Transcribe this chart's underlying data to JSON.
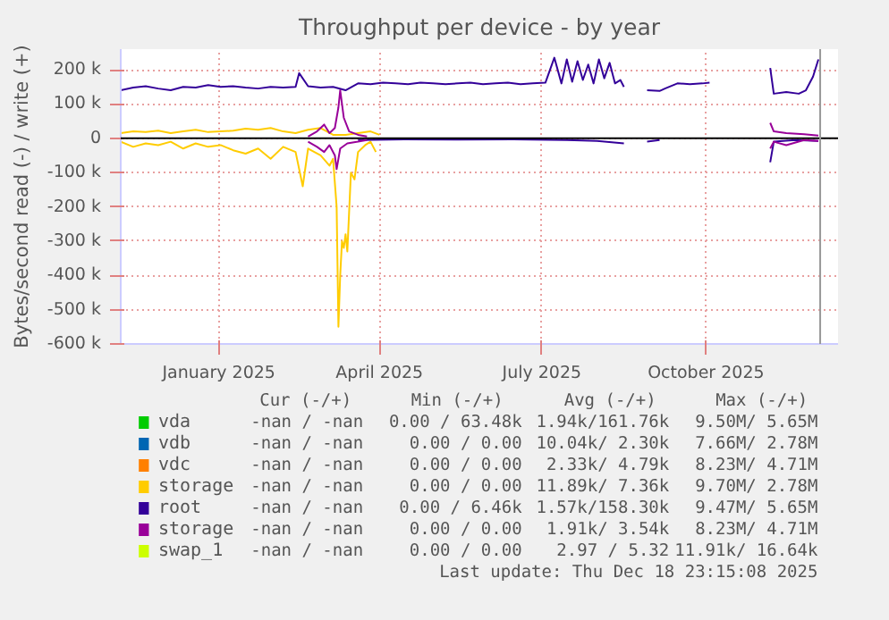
{
  "chart_data": {
    "type": "line",
    "title": "Throughput per device - by year",
    "ylabel": "Bytes/second read (-) / write (+)",
    "xlim": [
      "2024-11-07",
      "2025-12-14"
    ],
    "ylim": [
      -600,
      260
    ],
    "xticks": [
      {
        "value": "2025-01-01",
        "label": "January 2025"
      },
      {
        "value": "2025-04-01",
        "label": "April 2025"
      },
      {
        "value": "2025-07-01",
        "label": "July 2025"
      },
      {
        "value": "2025-10-01",
        "label": "October 2025"
      }
    ],
    "yticks": [
      {
        "value": -600,
        "label": "-600 k"
      },
      {
        "value": -500,
        "label": "-500 k"
      },
      {
        "value": -400,
        "label": "-400 k"
      },
      {
        "value": -300,
        "label": "-300 k"
      },
      {
        "value": -200,
        "label": "-200 k"
      },
      {
        "value": -100,
        "label": "-100 k"
      },
      0,
      {
        "value": 100,
        "label": "100 k"
      },
      {
        "value": 200,
        "label": "200 k"
      }
    ],
    "grid": true,
    "legend": "bottom",
    "ref_lines": [
      {
        "axis": "y",
        "value": 0,
        "color": "#000000"
      },
      {
        "axis": "x",
        "value": "2025-12-04",
        "color": "#999999"
      }
    ],
    "annotations": [
      "Cur (-/+)",
      "Min (-/+)",
      "Avg (-/+)",
      "Max (-/+)",
      "-nan / -nan",
      "0.00 / 63.48k",
      "1.94k/161.76k",
      "9.50M/ 5.65M",
      "-nan / -nan",
      "0.00 / 0.00",
      "10.04k/ 2.30k",
      "7.66M/ 2.78M",
      "-nan / -nan",
      "0.00 / 0.00",
      "2.33k/ 4.79k",
      "8.23M/ 4.71M",
      "-nan / -nan",
      "0.00 / 0.00",
      "11.89k/ 7.36k",
      "9.70M/ 2.78M",
      "-nan / -nan",
      "0.00 / 6.46k",
      "1.57k/158.30k",
      "9.47M/ 5.65M",
      "-nan / -nan",
      "0.00 / 0.00",
      "1.91k/ 3.54k",
      "8.23M/ 4.71M",
      "-nan / -nan",
      "0.00 / 0.00",
      "2.97 / 5.32",
      "11.91k/ 16.64k",
      "Last update: Thu Dec 18 23:15:08 2025"
    ],
    "series": [
      {
        "name": "vda",
        "color": "#00cc00"
      },
      {
        "name": "vdb",
        "color": "#0066b3"
      },
      {
        "name": "vdc",
        "color": "#ff8000"
      },
      {
        "name": "storage",
        "color": "#ffcc00",
        "x": [
          "2024-11-07",
          "2024-11-14",
          "2024-11-21",
          "2024-11-28",
          "2024-12-05",
          "2024-12-12",
          "2024-12-19",
          "2024-12-26",
          "2025-01-02",
          "2025-01-09",
          "2025-01-16",
          "2025-01-23",
          "2025-01-30",
          "2025-02-06",
          "2025-02-13",
          "2025-02-20",
          "2025-02-27",
          "2025-03-06",
          "2025-03-13",
          "2025-03-20",
          "2025-03-27",
          "2025-04-01"
        ],
        "values": [
          15,
          20,
          18,
          22,
          15,
          20,
          25,
          18,
          20,
          22,
          28,
          25,
          30,
          20,
          15,
          25,
          30,
          10,
          10,
          15,
          20,
          10
        ]
      },
      {
        "name": "root",
        "color": "#330099",
        "x": [
          "2024-11-07",
          "2024-11-14",
          "2024-11-21",
          "2024-11-28",
          "2024-12-05",
          "2024-12-12",
          "2024-12-19",
          "2024-12-26",
          "2025-01-02",
          "2025-01-09",
          "2025-01-16",
          "2025-01-23",
          "2025-01-30",
          "2025-02-06",
          "2025-02-13",
          "2025-02-15",
          "2025-02-20",
          "2025-02-27",
          "2025-03-06",
          "2025-03-13",
          "2025-03-20",
          "2025-03-27",
          "2025-04-03",
          "2025-04-10",
          "2025-04-17",
          "2025-04-24",
          "2025-05-01",
          "2025-05-08",
          "2025-05-15",
          "2025-05-22",
          "2025-05-29",
          "2025-06-05",
          "2025-06-12",
          "2025-06-19",
          "2025-06-26",
          "2025-07-03",
          "2025-07-08",
          "2025-07-12",
          "2025-07-15",
          "2025-07-18",
          "2025-07-21",
          "2025-07-24",
          "2025-07-27",
          "2025-07-30",
          "2025-08-02",
          "2025-08-05",
          "2025-08-08",
          "2025-08-11",
          "2025-08-14",
          "2025-08-16",
          "2025-08-22",
          "2025-08-29",
          "2025-09-05",
          "2025-09-08",
          "2025-09-15",
          "2025-09-22",
          "2025-09-29",
          "2025-10-03",
          "2025-10-15",
          "2025-11-06",
          "2025-11-08",
          "2025-11-15",
          "2025-11-22",
          "2025-11-26",
          "2025-11-30",
          "2025-12-03"
        ],
        "values": [
          140,
          148,
          152,
          145,
          140,
          150,
          148,
          155,
          150,
          152,
          148,
          145,
          150,
          148,
          150,
          190,
          152,
          148,
          150,
          140,
          160,
          158,
          162,
          160,
          158,
          162,
          160,
          158,
          160,
          162,
          158,
          160,
          162,
          158,
          160,
          162,
          235,
          160,
          230,
          165,
          225,
          170,
          215,
          160,
          230,
          175,
          220,
          160,
          170,
          150,
          null,
          140,
          138,
          145,
          160,
          158,
          160,
          162,
          null,
          205,
          130,
          135,
          130,
          140,
          180,
          230
        ]
      },
      {
        "name": "storage",
        "color": "#990099",
        "x": [
          "2025-02-20",
          "2025-02-25",
          "2025-03-01",
          "2025-03-04",
          "2025-03-07",
          "2025-03-09",
          "2025-03-10",
          "2025-03-12",
          "2025-03-15",
          "2025-03-20",
          "2025-03-25",
          "2025-04-01",
          "2025-11-06",
          "2025-11-08",
          "2025-11-15",
          "2025-11-25",
          "2025-12-03"
        ],
        "values": [
          5,
          20,
          40,
          15,
          30,
          90,
          140,
          60,
          20,
          10,
          5,
          null,
          45,
          20,
          15,
          12,
          8
        ]
      },
      {
        "name": "swap_1",
        "color": "#ccff00"
      },
      {
        "color": "#ffcc00",
        "x": [
          "2024-11-07",
          "2024-11-14",
          "2024-11-21",
          "2024-11-28",
          "2024-12-05",
          "2024-12-12",
          "2024-12-19",
          "2024-12-26",
          "2025-01-02",
          "2025-01-09",
          "2025-01-16",
          "2025-01-23",
          "2025-01-30",
          "2025-02-06",
          "2025-02-13",
          "2025-02-17",
          "2025-02-20",
          "2025-02-27",
          "2025-03-04",
          "2025-03-06",
          "2025-03-08",
          "2025-03-09",
          "2025-03-10",
          "2025-03-11",
          "2025-03-12",
          "2025-03-13",
          "2025-03-14",
          "2025-03-16",
          "2025-03-18",
          "2025-03-20",
          "2025-03-24",
          "2025-03-27",
          "2025-03-30"
        ],
        "values": [
          -10,
          -25,
          -15,
          -20,
          -10,
          -30,
          -15,
          -25,
          -20,
          -35,
          -45,
          -30,
          -60,
          -25,
          -40,
          -140,
          -30,
          -50,
          -80,
          -60,
          -200,
          -550,
          -400,
          -300,
          -320,
          -280,
          -330,
          -100,
          -120,
          -40,
          -20,
          -10,
          -40
        ]
      },
      {
        "color": "#330099",
        "x": [
          "2025-03-20",
          "2025-04-15",
          "2025-05-15",
          "2025-06-15",
          "2025-07-15",
          "2025-08-01",
          "2025-08-16",
          "2025-08-22",
          "2025-08-29",
          "2025-09-05",
          "2025-09-10",
          "2025-11-06",
          "2025-11-08",
          "2025-11-20",
          "2025-12-03"
        ],
        "values": [
          -5,
          -3,
          -4,
          -3,
          -5,
          -8,
          -15,
          null,
          -10,
          -5,
          null,
          -70,
          -10,
          -5,
          -8
        ]
      },
      {
        "color": "#990099",
        "x": [
          "2025-02-20",
          "2025-02-25",
          "2025-03-01",
          "2025-03-04",
          "2025-03-07",
          "2025-03-08",
          "2025-03-10",
          "2025-03-14",
          "2025-03-20",
          "2025-03-25",
          "2025-04-01",
          "2025-11-06",
          "2025-11-08",
          "2025-11-15",
          "2025-11-25",
          "2025-12-03"
        ],
        "values": [
          -10,
          -25,
          -40,
          -20,
          -50,
          -90,
          -30,
          -15,
          -10,
          -5,
          null,
          -30,
          -10,
          -20,
          -5,
          -8
        ]
      }
    ]
  }
}
